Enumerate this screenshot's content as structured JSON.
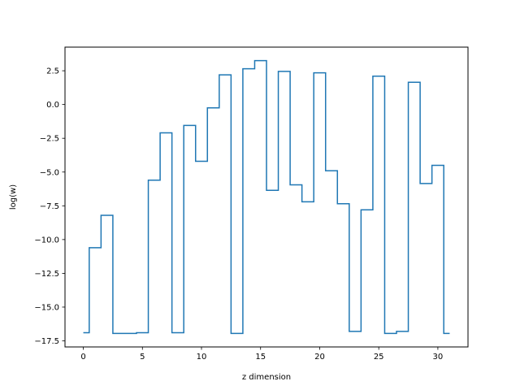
{
  "chart_data": {
    "type": "line",
    "drawstyle": "steps-mid",
    "title": "",
    "xlabel": "z dimension",
    "ylabel": "log(w)",
    "xlim": [
      -1.55,
      32.55
    ],
    "ylim": [
      -17.95,
      4.25
    ],
    "xticks": [
      0,
      5,
      10,
      15,
      20,
      25,
      30
    ],
    "xtick_labels": [
      "0",
      "5",
      "10",
      "15",
      "20",
      "25",
      "30"
    ],
    "yticks": [
      2.5,
      0.0,
      -2.5,
      -5.0,
      -7.5,
      -10.0,
      -12.5,
      -15.0,
      -17.5
    ],
    "ytick_labels": [
      "2.5",
      "0.0",
      "−2.5",
      "−5.0",
      "−7.5",
      "−10.0",
      "−12.5",
      "−15.0",
      "−17.5"
    ],
    "grid": false,
    "line_color": "#1f77b4",
    "x": [
      0,
      1,
      2,
      3,
      4,
      5,
      6,
      7,
      8,
      9,
      10,
      11,
      12,
      13,
      14,
      15,
      16,
      17,
      18,
      19,
      20,
      21,
      22,
      23,
      24,
      25,
      26,
      27,
      28,
      29,
      30,
      31
    ],
    "y": [
      -16.9,
      -10.6,
      -8.2,
      -16.95,
      -16.95,
      -16.9,
      -5.6,
      -2.1,
      -16.9,
      -1.55,
      -4.2,
      -0.25,
      2.2,
      -16.95,
      2.65,
      3.25,
      -6.35,
      2.45,
      -5.95,
      -7.2,
      2.35,
      -4.9,
      -7.35,
      -16.8,
      -7.8,
      2.1,
      -16.95,
      -16.8,
      1.65,
      -5.85,
      -4.5,
      -16.95
    ]
  }
}
